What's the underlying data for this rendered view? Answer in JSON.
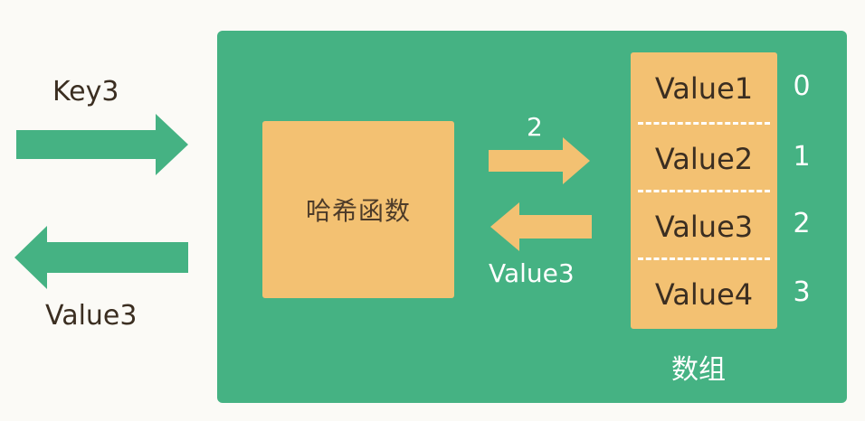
{
  "colors": {
    "background": "#fbfaf6",
    "panel": "#45b283",
    "box": "#f3c172",
    "outside_arrow": "#45b283",
    "inner_arrow": "#f3c172",
    "text_dark": "#3b2e21",
    "text_light": "#ffffff"
  },
  "outside": {
    "input_label": "Key3",
    "output_label": "Value3"
  },
  "hash_function": {
    "label": "哈希函数"
  },
  "inner": {
    "index_label": "2",
    "return_label": "Value3"
  },
  "array": {
    "caption": "数组",
    "cells": [
      {
        "value": "Value1",
        "index": "0"
      },
      {
        "value": "Value2",
        "index": "1"
      },
      {
        "value": "Value3",
        "index": "2"
      },
      {
        "value": "Value4",
        "index": "3"
      }
    ]
  }
}
